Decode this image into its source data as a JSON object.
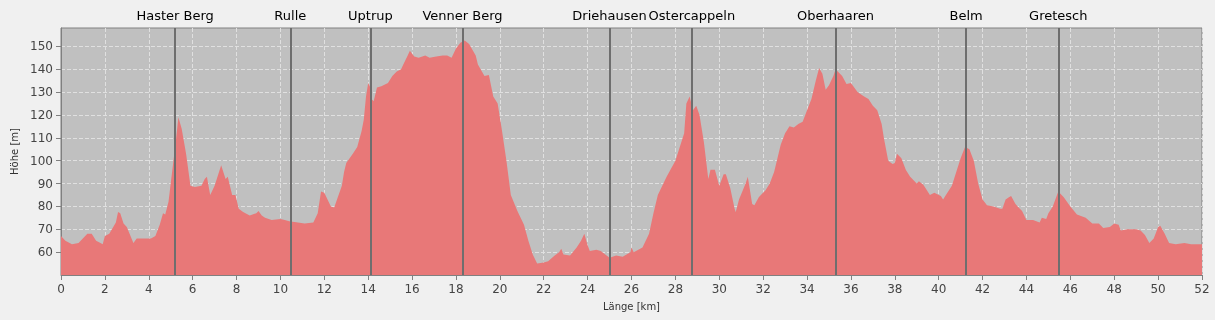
{
  "chart_data": {
    "type": "area",
    "xlabel": "Länge [km]",
    "ylabel": "Höhe [m]",
    "color": "#e87878",
    "x": [
      0,
      0.2,
      0.5,
      0.8,
      1.2,
      1.4,
      1.6,
      1.8,
      1.9,
      2.0,
      2.2,
      2.5,
      2.6,
      2.7,
      2.85,
      3.0,
      3.3,
      3.45,
      3.8,
      4.1,
      4.3,
      4.5,
      4.65,
      4.75,
      4.9,
      5.1,
      5.25,
      5.35,
      5.5,
      5.7,
      5.9,
      6.1,
      6.4,
      6.55,
      6.65,
      6.8,
      7.0,
      7.3,
      7.5,
      7.6,
      7.8,
      7.95,
      8.1,
      8.3,
      8.6,
      8.9,
      9.0,
      9.15,
      9.3,
      9.6,
      10.0,
      10.2,
      10.4,
      10.8,
      11.1,
      11.5,
      11.7,
      11.85,
      12.0,
      12.3,
      12.45,
      12.8,
      12.9,
      13.0,
      13.3,
      13.5,
      13.7,
      13.8,
      13.9,
      14.0,
      14.1,
      14.15,
      14.25,
      14.4,
      14.6,
      14.9,
      15.1,
      15.3,
      15.5,
      15.6,
      15.8,
      15.9,
      16.1,
      16.3,
      16.6,
      16.8,
      17.1,
      17.4,
      17.6,
      17.8,
      18.0,
      18.2,
      18.4,
      18.6,
      18.9,
      19.0,
      19.3,
      19.5,
      19.7,
      19.9,
      20.1,
      20.3,
      20.5,
      20.8,
      21.1,
      21.3,
      21.5,
      21.7,
      22.0,
      22.2,
      22.5,
      22.7,
      22.8,
      22.9,
      23.2,
      23.5,
      23.7,
      23.85,
      24.0,
      24.1,
      24.4,
      24.6,
      25.0,
      25.3,
      25.6,
      25.95,
      26.0,
      26.1,
      26.5,
      26.8,
      27.0,
      27.2,
      27.6,
      28.0,
      28.2,
      28.4,
      28.5,
      28.65,
      28.8,
      28.95,
      29.1,
      29.3,
      29.5,
      29.6,
      29.8,
      30.0,
      30.2,
      30.3,
      30.5,
      30.7,
      30.75,
      30.9,
      31.2,
      31.3,
      31.5,
      31.6,
      31.8,
      32.1,
      32.3,
      32.5,
      32.8,
      33.0,
      33.2,
      33.4,
      33.6,
      33.8,
      34.0,
      34.2,
      34.4,
      34.55,
      34.7,
      34.85,
      35.0,
      35.2,
      35.3,
      35.6,
      35.8,
      36.0,
      36.3,
      36.6,
      36.8,
      37.0,
      37.2,
      37.4,
      37.5,
      37.7,
      37.9,
      38.0,
      38.1,
      38.3,
      38.5,
      38.7,
      39.0,
      39.1,
      39.3,
      39.6,
      39.8,
      40.1,
      40.2,
      40.3,
      40.6,
      40.8,
      41.0,
      41.2,
      41.4,
      41.6,
      41.8,
      42.0,
      42.2,
      42.5,
      42.8,
      42.9,
      43.05,
      43.2,
      43.3,
      43.5,
      43.8,
      44.0,
      44.3,
      44.6,
      44.7,
      44.9,
      45.0,
      45.2,
      45.45,
      45.7,
      46.0,
      46.3,
      46.7,
      47.0,
      47.3,
      47.5,
      47.8,
      48.0,
      48.2,
      48.3,
      48.6,
      49.0,
      49.2,
      49.4,
      49.6,
      49.8,
      50.0,
      50.1,
      50.3,
      50.5,
      50.8,
      51.2,
      51.5,
      52.0
    ],
    "values": [
      67,
      65,
      63.5,
      64,
      68,
      68,
      65,
      64,
      63.5,
      67,
      68,
      73,
      77.5,
      77,
      72.5,
      71,
      64,
      66,
      66,
      66,
      67,
      72,
      77,
      76.5,
      82,
      98,
      110,
      119,
      114,
      103,
      89,
      88.5,
      89,
      92,
      93,
      85,
      89,
      98,
      92,
      93,
      85,
      85,
      79,
      77.5,
      76,
      77,
      78,
      76,
      75,
      74,
      74.5,
      74,
      73.5,
      73,
      72.5,
      73,
      77,
      86.5,
      86,
      80,
      79.5,
      89,
      95,
      99,
      103,
      106,
      113,
      118,
      128,
      134,
      132,
      127,
      126,
      132,
      132.5,
      134,
      137,
      139,
      140,
      142,
      146,
      148,
      145.5,
      145,
      146,
      145,
      145.5,
      146,
      146,
      145,
      149,
      151.5,
      152.5,
      151,
      146,
      142,
      137,
      137.5,
      128,
      125,
      113,
      100,
      85,
      78,
      72,
      65,
      59,
      55,
      55.5,
      56,
      58.5,
      60,
      61.5,
      59,
      58.5,
      62,
      65,
      68,
      63,
      60.5,
      61,
      60.5,
      57.5,
      58.5,
      58,
      60,
      62,
      60,
      62,
      68,
      77,
      85,
      93,
      100,
      106,
      112,
      125,
      128,
      122,
      124,
      120,
      108,
      92,
      96,
      96,
      89,
      94,
      94,
      88,
      79,
      77.5,
      83,
      90,
      93,
      81,
      80.5,
      84,
      87,
      90,
      95,
      107,
      112,
      115,
      114.5,
      116,
      117,
      122,
      127,
      135,
      140.5,
      138,
      131,
      133,
      137,
      140,
      137,
      133.5,
      134,
      130,
      128,
      127,
      124,
      122,
      116,
      110,
      100,
      98.5,
      99,
      103,
      101,
      96,
      93,
      90,
      91,
      89.5,
      85,
      86,
      84.5,
      83,
      84.5,
      89,
      95,
      101,
      106,
      105,
      100,
      90,
      83,
      80.5,
      80,
      79,
      79,
      83,
      84,
      84.5,
      81,
      78,
      74,
      74,
      73,
      75,
      74.5,
      77,
      80,
      86.5,
      84,
      80,
      76.5,
      75,
      72.5,
      72.5,
      70.5,
      71,
      72.5,
      72,
      69.5,
      70,
      70,
      69.5,
      67.5,
      64,
      66,
      71,
      71.5,
      68,
      64,
      63.5,
      64,
      63.5,
      63.5
    ],
    "xlim": [
      0,
      52
    ],
    "xticks": [
      0,
      2,
      4,
      6,
      8,
      10,
      12,
      14,
      16,
      18,
      20,
      22,
      24,
      26,
      28,
      30,
      32,
      34,
      36,
      38,
      40,
      42,
      44,
      46,
      48,
      50,
      52
    ],
    "ylim": [
      50,
      158
    ],
    "yticks": [
      60,
      70,
      80,
      90,
      100,
      110,
      120,
      130,
      140,
      150
    ],
    "grid": true,
    "ref_lines": [
      {
        "axis": "x",
        "value": 5.2,
        "label": "Haster Berg",
        "color": "#6e6e6e"
      },
      {
        "axis": "x",
        "value": 10.45,
        "label": "Rulle",
        "color": "#6e6e6e"
      },
      {
        "axis": "x",
        "value": 14.1,
        "label": "Uptrup",
        "color": "#6e6e6e"
      },
      {
        "axis": "x",
        "value": 18.3,
        "label": "Venner Berg",
        "color": "#6e6e6e"
      },
      {
        "axis": "x",
        "value": 25.0,
        "label": "Driehausen",
        "color": "#6e6e6e"
      },
      {
        "axis": "x",
        "value": 28.75,
        "label": "Ostercappeln",
        "color": "#6e6e6e"
      },
      {
        "axis": "x",
        "value": 35.3,
        "label": "Oberhaaren",
        "color": "#6e6e6e"
      },
      {
        "axis": "x",
        "value": 41.25,
        "label": "Belm",
        "color": "#6e6e6e"
      },
      {
        "axis": "x",
        "value": 45.45,
        "label": "Gretesch",
        "color": "#6e6e6e"
      }
    ]
  }
}
